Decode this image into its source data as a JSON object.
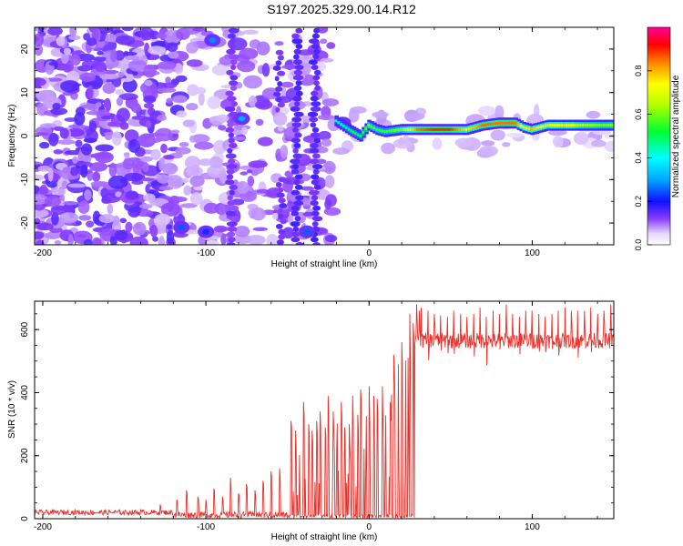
{
  "title": "S197.2025.329.00.14.R12",
  "colors": {
    "snr_line": "#e8302a",
    "spectro_low": "#e8dcff",
    "spectro_mid": "#7a2cf0",
    "frame": "#000000"
  },
  "chart_data": [
    {
      "type": "heatmap",
      "name": "spectrogram",
      "xlabel": "Height of straight line (km)",
      "ylabel": "Frequency (Hz)",
      "xlim": [
        -205,
        150
      ],
      "ylim": [
        -25,
        25
      ],
      "xticks": [
        -200,
        -100,
        0,
        100
      ],
      "xtick_labels": [
        "-200",
        "-100",
        "0",
        "100"
      ],
      "yticks": [
        -20,
        -10,
        0,
        10,
        20
      ],
      "ytick_labels": [
        "-20",
        "-10",
        "0",
        "10",
        "20"
      ],
      "colorbar": {
        "label": "Normalized spectral amplitude",
        "range": [
          0,
          1
        ],
        "ticks": [
          0.0,
          0.2,
          0.4,
          0.6,
          0.8
        ],
        "tick_labels": [
          "0.0",
          "0.2",
          "0.4",
          "0.6",
          "0.8"
        ]
      },
      "description_series": {
        "carrier_track": {
          "x_km": [
            -20,
            -12,
            -5,
            0,
            5,
            10,
            20,
            30,
            40,
            50,
            60,
            70,
            80,
            90,
            95,
            100,
            110,
            120,
            130,
            140,
            150
          ],
          "freq_hz": [
            3.5,
            1.5,
            0.0,
            2.5,
            1.5,
            1.0,
            1.5,
            1.5,
            1.5,
            1.5,
            1.5,
            2.5,
            3.0,
            3.0,
            2.0,
            1.5,
            2.5,
            2.5,
            2.5,
            2.5,
            2.5
          ],
          "amplitude": [
            0.45,
            0.5,
            0.5,
            0.6,
            0.55,
            0.55,
            0.6,
            0.85,
            0.9,
            0.9,
            0.75,
            0.85,
            0.85,
            0.85,
            0.7,
            0.8,
            0.7,
            0.75,
            0.65,
            0.6,
            0.6
          ]
        }
      }
    },
    {
      "type": "line",
      "name": "snr",
      "xlabel": "Height of straight line (km)",
      "ylabel": "SNR (10 * v/v)",
      "xlim": [
        -205,
        150
      ],
      "ylim": [
        0,
        690
      ],
      "xticks": [
        -200,
        -100,
        0,
        100
      ],
      "xtick_labels": [
        "-200",
        "-100",
        "0",
        "100"
      ],
      "yticks": [
        0,
        200,
        400,
        600
      ],
      "ytick_labels": [
        "0",
        "200",
        "400",
        "600"
      ],
      "baseline_segments": [
        {
          "x_from": -205,
          "x_to": -120,
          "level": 20,
          "noise": 8
        },
        {
          "x_from": -120,
          "x_to": -50,
          "level": 12,
          "noise": 10
        },
        {
          "x_from": -50,
          "x_to": 28,
          "level": 8,
          "noise": 6
        },
        {
          "x_from": 28,
          "x_to": 150,
          "level": 565,
          "noise": 25
        }
      ],
      "spikes": {
        "x": [
          -140,
          -128,
          -118,
          -112,
          -105,
          -100,
          -95,
          -90,
          -85,
          -80,
          -75,
          -70,
          -65,
          -60,
          -55,
          -48,
          -45,
          -43,
          -40,
          -37,
          -35,
          -32,
          -30,
          -27,
          -25,
          -22,
          -20,
          -17,
          -15,
          -12,
          -10,
          -7,
          -5,
          -2,
          0,
          3,
          5,
          8,
          10,
          13,
          15,
          18,
          20,
          22,
          24,
          25,
          27,
          29,
          31
        ],
        "y": [
          30,
          45,
          60,
          90,
          70,
          60,
          95,
          70,
          130,
          80,
          110,
          90,
          120,
          150,
          160,
          310,
          280,
          260,
          370,
          300,
          280,
          310,
          340,
          290,
          390,
          340,
          330,
          370,
          290,
          300,
          390,
          330,
          410,
          360,
          420,
          390,
          380,
          420,
          400,
          370,
          520,
          490,
          560,
          600,
          510,
          650,
          620,
          680,
          660
        ]
      },
      "upper_spikes": {
        "x": [
          32,
          36,
          40,
          44,
          48,
          52,
          56,
          60,
          64,
          68,
          72,
          76,
          80,
          84,
          88,
          92,
          96,
          100,
          104,
          108,
          112,
          116,
          120,
          124,
          128,
          132,
          136,
          140,
          144,
          148
        ],
        "y": [
          670,
          660,
          650,
          645,
          640,
          660,
          650,
          640,
          650,
          670,
          640,
          660,
          650,
          680,
          650,
          640,
          660,
          660,
          650,
          640,
          650,
          660,
          670,
          660,
          660,
          660,
          670,
          650,
          660,
          680
        ]
      }
    }
  ]
}
